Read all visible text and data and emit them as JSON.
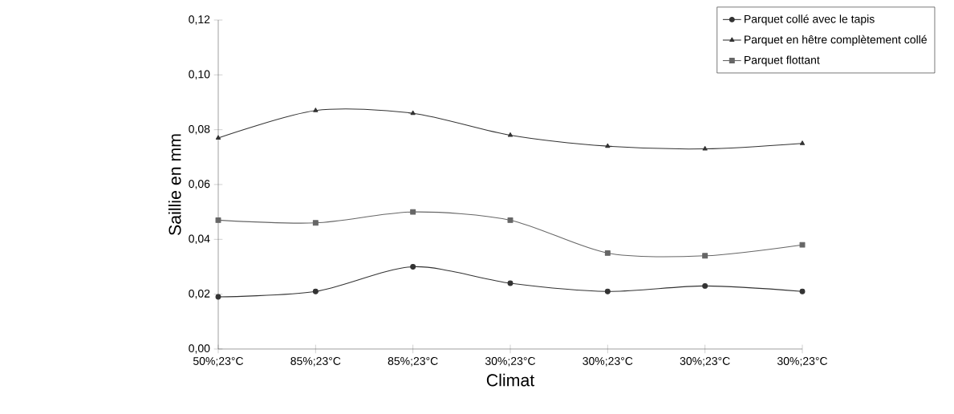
{
  "chart_data": {
    "type": "line",
    "xlabel": "Climat",
    "ylabel": "Saillie en mm",
    "categories": [
      "50%;23°C",
      "85%;23°C",
      "85%;23°C",
      "30%;23°C",
      "30%;23°C",
      "30%;23°C",
      "30%;23°C"
    ],
    "series": [
      {
        "name": "Parquet collé avec le tapis",
        "color": "#333333",
        "marker": "circle",
        "values": [
          0.019,
          0.021,
          0.03,
          0.024,
          0.021,
          0.023,
          0.021
        ]
      },
      {
        "name": "Parquet en hêtre complètement collé",
        "color": "#333333",
        "marker": "triangle",
        "values": [
          0.077,
          0.087,
          0.086,
          0.078,
          0.074,
          0.073,
          0.075
        ]
      },
      {
        "name": "Parquet flottant",
        "color": "#666666",
        "marker": "square",
        "values": [
          0.047,
          0.046,
          0.05,
          0.047,
          0.035,
          0.034,
          0.038
        ]
      }
    ],
    "ylim": [
      0,
      0.12
    ],
    "yticks": [
      {
        "value": 0,
        "label": "0,00"
      },
      {
        "value": 0.02,
        "label": "0,02"
      },
      {
        "value": 0.04,
        "label": "0,04"
      },
      {
        "value": 0.06,
        "label": "0,06"
      },
      {
        "value": 0.08,
        "label": "0,08"
      },
      {
        "value": 0.1,
        "label": "0,10"
      },
      {
        "value": 0.12,
        "label": "0,12"
      }
    ],
    "legend": "top right",
    "grid": false,
    "line_style": "solid"
  }
}
